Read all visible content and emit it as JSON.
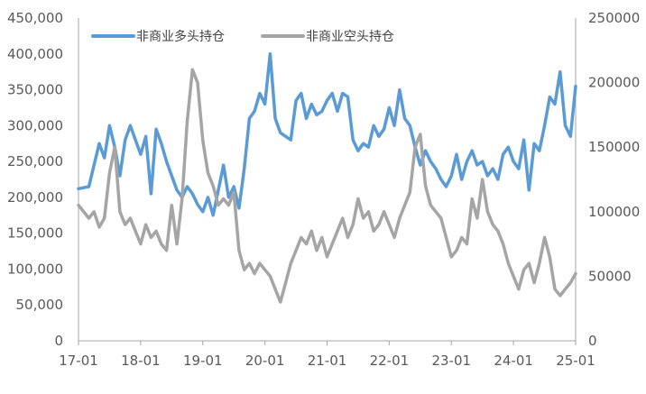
{
  "chart_data": {
    "type": "line",
    "x_ticks": [
      "17-01",
      "18-01",
      "19-01",
      "20-01",
      "21-01",
      "22-01",
      "23-01",
      "24-01",
      "25-01"
    ],
    "x_range": [
      "2017-01",
      "2025-01"
    ],
    "y_left": {
      "ticks": [
        "0",
        "50,000",
        "100,000",
        "150,000",
        "200,000",
        "250,000",
        "300,000",
        "350,000",
        "400,000",
        "450,000"
      ],
      "ylim": [
        0,
        450000
      ]
    },
    "y_right": {
      "ticks": [
        "0",
        "50000",
        "100000",
        "150000",
        "200000",
        "250000"
      ],
      "ylim": [
        0,
        250000
      ]
    },
    "grid": false,
    "legend_position": "top-left",
    "series": [
      {
        "name": "非商业多头持仓",
        "axis": "left",
        "color": "#5B9BD5",
        "points": [
          [
            "2017-01",
            212000
          ],
          [
            "2017-03",
            215000
          ],
          [
            "2017-04",
            245000
          ],
          [
            "2017-05",
            275000
          ],
          [
            "2017-06",
            255000
          ],
          [
            "2017-07",
            300000
          ],
          [
            "2017-08",
            270000
          ],
          [
            "2017-09",
            230000
          ],
          [
            "2017-10",
            280000
          ],
          [
            "2017-11",
            300000
          ],
          [
            "2017-12",
            280000
          ],
          [
            "2018-01",
            260000
          ],
          [
            "2018-02",
            285000
          ],
          [
            "2018-03",
            205000
          ],
          [
            "2018-04",
            295000
          ],
          [
            "2018-05",
            275000
          ],
          [
            "2018-06",
            250000
          ],
          [
            "2018-07",
            230000
          ],
          [
            "2018-08",
            210000
          ],
          [
            "2018-09",
            200000
          ],
          [
            "2018-10",
            215000
          ],
          [
            "2018-11",
            205000
          ],
          [
            "2018-12",
            190000
          ],
          [
            "2019-01",
            180000
          ],
          [
            "2019-02",
            200000
          ],
          [
            "2019-03",
            175000
          ],
          [
            "2019-04",
            210000
          ],
          [
            "2019-05",
            245000
          ],
          [
            "2019-06",
            200000
          ],
          [
            "2019-07",
            215000
          ],
          [
            "2019-08",
            185000
          ],
          [
            "2019-09",
            240000
          ],
          [
            "2019-10",
            310000
          ],
          [
            "2019-11",
            320000
          ],
          [
            "2019-12",
            345000
          ],
          [
            "2020-01",
            330000
          ],
          [
            "2020-02",
            400000
          ],
          [
            "2020-03",
            310000
          ],
          [
            "2020-04",
            290000
          ],
          [
            "2020-05",
            285000
          ],
          [
            "2020-06",
            280000
          ],
          [
            "2020-07",
            335000
          ],
          [
            "2020-08",
            345000
          ],
          [
            "2020-09",
            310000
          ],
          [
            "2020-10",
            330000
          ],
          [
            "2020-11",
            315000
          ],
          [
            "2020-12",
            320000
          ],
          [
            "2021-01",
            335000
          ],
          [
            "2021-02",
            345000
          ],
          [
            "2021-03",
            320000
          ],
          [
            "2021-04",
            345000
          ],
          [
            "2021-05",
            340000
          ],
          [
            "2021-06",
            280000
          ],
          [
            "2021-07",
            265000
          ],
          [
            "2021-08",
            275000
          ],
          [
            "2021-09",
            270000
          ],
          [
            "2021-10",
            300000
          ],
          [
            "2021-11",
            285000
          ],
          [
            "2021-12",
            295000
          ],
          [
            "2022-01",
            325000
          ],
          [
            "2022-02",
            300000
          ],
          [
            "2022-03",
            350000
          ],
          [
            "2022-04",
            310000
          ],
          [
            "2022-05",
            300000
          ],
          [
            "2022-06",
            270000
          ],
          [
            "2022-07",
            245000
          ],
          [
            "2022-08",
            265000
          ],
          [
            "2022-09",
            250000
          ],
          [
            "2022-10",
            240000
          ],
          [
            "2022-11",
            225000
          ],
          [
            "2022-12",
            215000
          ],
          [
            "2023-01",
            230000
          ],
          [
            "2023-02",
            260000
          ],
          [
            "2023-03",
            225000
          ],
          [
            "2023-04",
            250000
          ],
          [
            "2023-05",
            265000
          ],
          [
            "2023-06",
            245000
          ],
          [
            "2023-07",
            250000
          ],
          [
            "2023-08",
            230000
          ],
          [
            "2023-09",
            240000
          ],
          [
            "2023-10",
            225000
          ],
          [
            "2023-11",
            260000
          ],
          [
            "2023-12",
            270000
          ],
          [
            "2024-01",
            250000
          ],
          [
            "2024-02",
            240000
          ],
          [
            "2024-03",
            280000
          ],
          [
            "2024-04",
            210000
          ],
          [
            "2024-05",
            275000
          ],
          [
            "2024-06",
            265000
          ],
          [
            "2024-07",
            300000
          ],
          [
            "2024-08",
            340000
          ],
          [
            "2024-09",
            330000
          ],
          [
            "2024-10",
            375000
          ],
          [
            "2024-11",
            300000
          ],
          [
            "2024-12",
            285000
          ],
          [
            "2025-01",
            355000
          ]
        ]
      },
      {
        "name": "非商业空头持仓",
        "axis": "right",
        "color": "#A5A5A5",
        "points": [
          [
            "2017-01",
            105000
          ],
          [
            "2017-03",
            95000
          ],
          [
            "2017-04",
            100000
          ],
          [
            "2017-05",
            88000
          ],
          [
            "2017-06",
            95000
          ],
          [
            "2017-07",
            130000
          ],
          [
            "2017-08",
            150000
          ],
          [
            "2017-09",
            100000
          ],
          [
            "2017-10",
            90000
          ],
          [
            "2017-11",
            95000
          ],
          [
            "2017-12",
            85000
          ],
          [
            "2018-01",
            75000
          ],
          [
            "2018-02",
            90000
          ],
          [
            "2018-03",
            80000
          ],
          [
            "2018-04",
            85000
          ],
          [
            "2018-05",
            75000
          ],
          [
            "2018-06",
            70000
          ],
          [
            "2018-07",
            105000
          ],
          [
            "2018-08",
            75000
          ],
          [
            "2018-09",
            110000
          ],
          [
            "2018-10",
            170000
          ],
          [
            "2018-11",
            210000
          ],
          [
            "2018-12",
            200000
          ],
          [
            "2019-01",
            155000
          ],
          [
            "2019-02",
            130000
          ],
          [
            "2019-03",
            120000
          ],
          [
            "2019-04",
            105000
          ],
          [
            "2019-05",
            110000
          ],
          [
            "2019-06",
            105000
          ],
          [
            "2019-07",
            115000
          ],
          [
            "2019-08",
            70000
          ],
          [
            "2019-09",
            55000
          ],
          [
            "2019-10",
            60000
          ],
          [
            "2019-11",
            52000
          ],
          [
            "2019-12",
            60000
          ],
          [
            "2020-01",
            55000
          ],
          [
            "2020-02",
            50000
          ],
          [
            "2020-03",
            40000
          ],
          [
            "2020-04",
            30000
          ],
          [
            "2020-05",
            45000
          ],
          [
            "2020-06",
            60000
          ],
          [
            "2020-07",
            70000
          ],
          [
            "2020-08",
            80000
          ],
          [
            "2020-09",
            75000
          ],
          [
            "2020-10",
            85000
          ],
          [
            "2020-11",
            70000
          ],
          [
            "2020-12",
            80000
          ],
          [
            "2021-01",
            65000
          ],
          [
            "2021-02",
            75000
          ],
          [
            "2021-03",
            85000
          ],
          [
            "2021-04",
            95000
          ],
          [
            "2021-05",
            80000
          ],
          [
            "2021-06",
            90000
          ],
          [
            "2021-07",
            110000
          ],
          [
            "2021-08",
            95000
          ],
          [
            "2021-09",
            100000
          ],
          [
            "2021-10",
            85000
          ],
          [
            "2021-11",
            90000
          ],
          [
            "2021-12",
            100000
          ],
          [
            "2022-01",
            90000
          ],
          [
            "2022-02",
            80000
          ],
          [
            "2022-03",
            95000
          ],
          [
            "2022-04",
            105000
          ],
          [
            "2022-05",
            115000
          ],
          [
            "2022-06",
            150000
          ],
          [
            "2022-07",
            160000
          ],
          [
            "2022-08",
            120000
          ],
          [
            "2022-09",
            105000
          ],
          [
            "2022-10",
            100000
          ],
          [
            "2022-11",
            95000
          ],
          [
            "2022-12",
            80000
          ],
          [
            "2023-01",
            65000
          ],
          [
            "2023-02",
            70000
          ],
          [
            "2023-03",
            80000
          ],
          [
            "2023-04",
            75000
          ],
          [
            "2023-05",
            110000
          ],
          [
            "2023-06",
            95000
          ],
          [
            "2023-07",
            125000
          ],
          [
            "2023-08",
            100000
          ],
          [
            "2023-09",
            90000
          ],
          [
            "2023-10",
            85000
          ],
          [
            "2023-11",
            75000
          ],
          [
            "2023-12",
            60000
          ],
          [
            "2024-01",
            50000
          ],
          [
            "2024-02",
            40000
          ],
          [
            "2024-03",
            55000
          ],
          [
            "2024-04",
            60000
          ],
          [
            "2024-05",
            45000
          ],
          [
            "2024-06",
            60000
          ],
          [
            "2024-07",
            80000
          ],
          [
            "2024-08",
            65000
          ],
          [
            "2024-09",
            40000
          ],
          [
            "2024-10",
            35000
          ],
          [
            "2024-11",
            40000
          ],
          [
            "2024-12",
            45000
          ],
          [
            "2025-01",
            52000
          ]
        ]
      }
    ]
  }
}
